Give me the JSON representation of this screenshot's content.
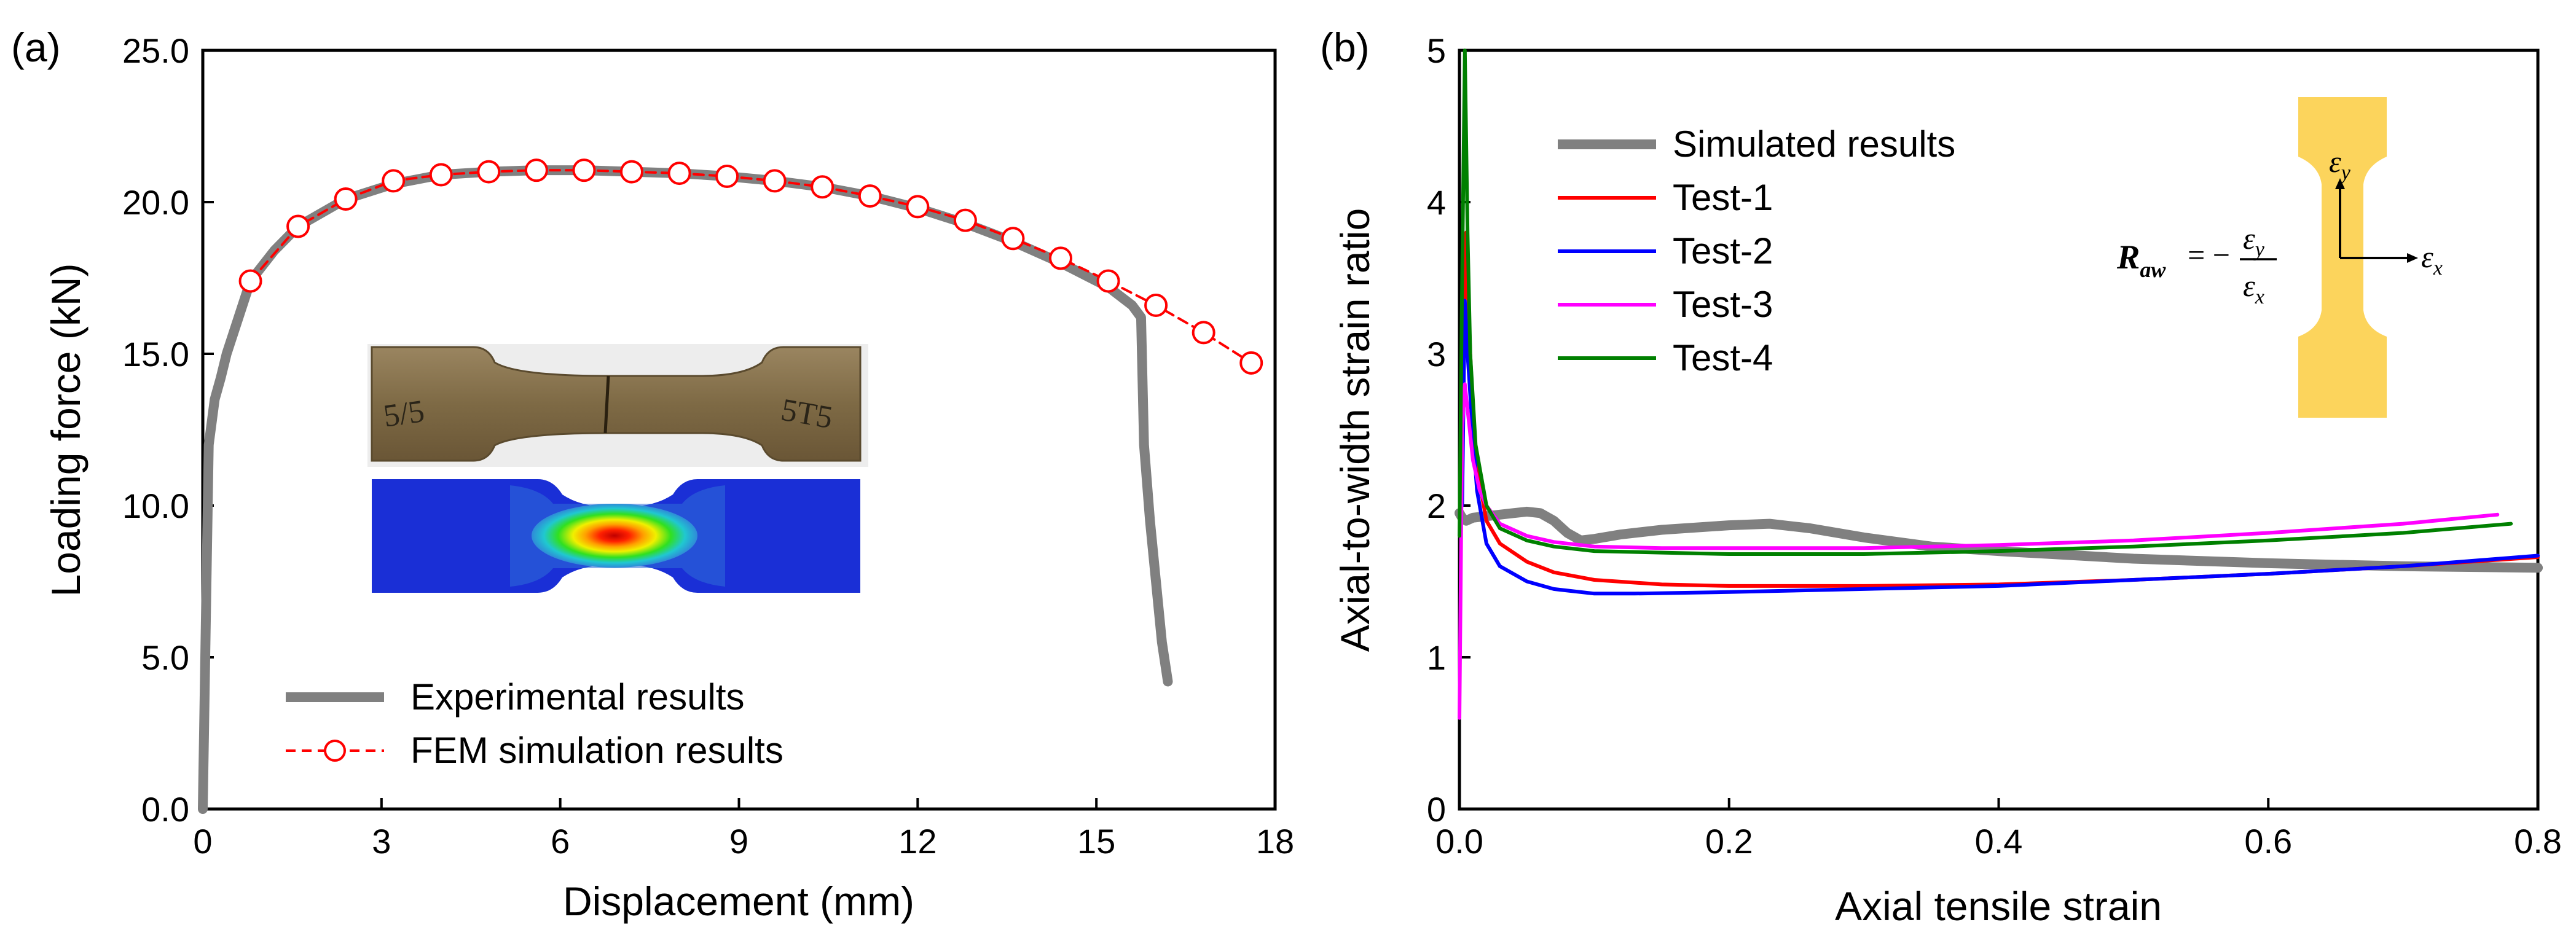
{
  "chart_data": [
    {
      "panel": "(a)",
      "type": "line",
      "xlabel": "Displacement (mm)",
      "ylabel": "Loading force (kN)",
      "xlim": [
        0,
        18
      ],
      "ylim": [
        0,
        25
      ],
      "xticks": [
        0,
        3,
        6,
        9,
        12,
        15,
        18
      ],
      "xtick_labels": [
        "0",
        "3",
        "6",
        "9",
        "12",
        "15",
        "18"
      ],
      "yticks": [
        0,
        5,
        10,
        15,
        20,
        25
      ],
      "ytick_labels": [
        "0.0",
        "5.0",
        "10.0",
        "15.0",
        "20.0",
        "25.0"
      ],
      "legend_position": "bottom-left",
      "inset": "photo of fractured dog-bone specimen above FEM contour plot",
      "series": [
        {
          "name": "Experimental results",
          "color": "#808080",
          "style": "solid-thick",
          "x": [
            0,
            0.05,
            0.1,
            0.2,
            0.3,
            0.4,
            0.6,
            0.8,
            1.2,
            1.6,
            2.4,
            3.2,
            4.0,
            4.8,
            5.6,
            6.4,
            7.2,
            8.0,
            8.8,
            9.6,
            10.4,
            11.2,
            12.0,
            12.8,
            13.6,
            14.4,
            15.2,
            15.6,
            15.75,
            15.8,
            15.9,
            16.0,
            16.1,
            16.2
          ],
          "y": [
            0,
            6,
            12,
            13.5,
            14.2,
            15.0,
            16.2,
            17.4,
            18.4,
            19.2,
            20.1,
            20.6,
            20.9,
            21.0,
            21.05,
            21.05,
            21.0,
            20.95,
            20.85,
            20.7,
            20.5,
            20.2,
            19.8,
            19.3,
            18.7,
            18.0,
            17.2,
            16.6,
            16.2,
            12.0,
            9.5,
            7.5,
            5.5,
            4.2
          ]
        },
        {
          "name": "FEM simulation results",
          "color": "#ff0000",
          "style": "dashed-circle-markers",
          "x": [
            0.8,
            1.6,
            2.4,
            3.2,
            4.0,
            4.8,
            5.6,
            6.4,
            7.2,
            8.0,
            8.8,
            9.6,
            10.4,
            11.2,
            12.0,
            12.8,
            13.6,
            14.4,
            15.2,
            16.0,
            16.8,
            17.6
          ],
          "y": [
            17.4,
            19.2,
            20.1,
            20.7,
            20.9,
            21.0,
            21.05,
            21.05,
            21.0,
            20.95,
            20.85,
            20.7,
            20.5,
            20.2,
            19.85,
            19.4,
            18.8,
            18.15,
            17.4,
            16.6,
            15.7,
            14.7
          ]
        }
      ]
    },
    {
      "panel": "(b)",
      "type": "line",
      "xlabel": "Axial tensile strain",
      "ylabel": "Axial-to-width strain ratio",
      "xlim": [
        0,
        0.8
      ],
      "ylim": [
        0,
        5
      ],
      "xticks": [
        0,
        0.2,
        0.4,
        0.6,
        0.8
      ],
      "xtick_labels": [
        "0.0",
        "0.2",
        "0.4",
        "0.6",
        "0.8"
      ],
      "yticks": [
        0,
        1,
        2,
        3,
        4,
        5
      ],
      "ytick_labels": [
        "0",
        "1",
        "2",
        "3",
        "4",
        "5"
      ],
      "legend_position": "top-left",
      "inset": "yellow dog-bone specimen schematic with R_aw = -ε_y/ε_x",
      "series": [
        {
          "name": "Simulated results",
          "color": "#808080",
          "style": "solid-thick",
          "x": [
            0.0,
            0.002,
            0.005,
            0.01,
            0.02,
            0.03,
            0.04,
            0.05,
            0.06,
            0.07,
            0.08,
            0.09,
            0.1,
            0.12,
            0.15,
            0.2,
            0.23,
            0.26,
            0.3,
            0.35,
            0.4,
            0.5,
            0.6,
            0.7,
            0.8
          ],
          "y": [
            1.95,
            1.92,
            1.9,
            1.92,
            1.93,
            1.94,
            1.95,
            1.96,
            1.95,
            1.9,
            1.82,
            1.77,
            1.78,
            1.81,
            1.84,
            1.87,
            1.88,
            1.85,
            1.79,
            1.73,
            1.7,
            1.65,
            1.62,
            1.6,
            1.59
          ]
        },
        {
          "name": "Test-1",
          "color": "#ff0000",
          "style": "solid",
          "x": [
            0.003,
            0.005,
            0.008,
            0.012,
            0.02,
            0.03,
            0.05,
            0.07,
            0.1,
            0.15,
            0.2,
            0.3,
            0.4,
            0.5,
            0.6,
            0.7,
            0.8
          ],
          "y": [
            3.0,
            3.8,
            3.0,
            2.3,
            1.9,
            1.75,
            1.63,
            1.56,
            1.51,
            1.48,
            1.47,
            1.47,
            1.48,
            1.51,
            1.55,
            1.6,
            1.66
          ]
        },
        {
          "name": "Test-2",
          "color": "#0000ff",
          "style": "solid",
          "x": [
            0.002,
            0.004,
            0.006,
            0.009,
            0.013,
            0.02,
            0.03,
            0.05,
            0.07,
            0.1,
            0.13,
            0.2,
            0.3,
            0.4,
            0.5,
            0.6,
            0.7,
            0.8
          ],
          "y": [
            2.0,
            3.35,
            3.0,
            2.6,
            2.1,
            1.75,
            1.6,
            1.5,
            1.45,
            1.42,
            1.42,
            1.43,
            1.45,
            1.47,
            1.51,
            1.55,
            1.6,
            1.67
          ]
        },
        {
          "name": "Test-3",
          "color": "#ff00ff",
          "style": "solid",
          "x": [
            0.0,
            0.002,
            0.004,
            0.007,
            0.01,
            0.015,
            0.02,
            0.03,
            0.05,
            0.07,
            0.1,
            0.15,
            0.2,
            0.3,
            0.4,
            0.5,
            0.6,
            0.7,
            0.77
          ],
          "y": [
            0.6,
            2.5,
            2.8,
            2.55,
            2.3,
            2.1,
            2.0,
            1.88,
            1.8,
            1.76,
            1.73,
            1.72,
            1.72,
            1.72,
            1.74,
            1.77,
            1.82,
            1.88,
            1.94
          ]
        },
        {
          "name": "Test-4",
          "color": "#008000",
          "style": "solid",
          "x": [
            0.0,
            0.002,
            0.004,
            0.006,
            0.008,
            0.012,
            0.02,
            0.03,
            0.05,
            0.07,
            0.1,
            0.15,
            0.2,
            0.3,
            0.4,
            0.5,
            0.6,
            0.7,
            0.78
          ],
          "y": [
            1.8,
            3.5,
            5.0,
            3.8,
            3.0,
            2.4,
            2.0,
            1.85,
            1.77,
            1.73,
            1.7,
            1.69,
            1.68,
            1.68,
            1.7,
            1.73,
            1.77,
            1.82,
            1.88
          ]
        }
      ]
    }
  ],
  "schematic": {
    "formula_lhs": "R",
    "formula_lhs_sub": "aw",
    "equals_minus": "= −",
    "numerator": "ε",
    "numerator_sub": "y",
    "denominator": "ε",
    "denominator_sub": "x",
    "axis_y_label": "ε",
    "axis_y_sub": "y",
    "axis_x_label": "ε",
    "axis_x_sub": "x",
    "specimen_color": "#fcd45c"
  },
  "colors": {
    "contour_blue": "#1a2fd6",
    "contour_mid": "#2f8ad8",
    "photo_bronze": "#8a7650"
  }
}
